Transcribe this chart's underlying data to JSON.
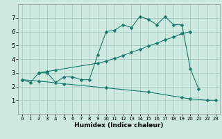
{
  "xlabel": "Humidex (Indice chaleur)",
  "bg_color": "#cce8e0",
  "grid_color": "#aacfc8",
  "line_color": "#1a7a6e",
  "xlim": [
    -0.5,
    23.5
  ],
  "ylim": [
    0,
    8
  ],
  "xticks": [
    0,
    1,
    2,
    3,
    4,
    5,
    6,
    7,
    8,
    9,
    10,
    11,
    12,
    13,
    14,
    15,
    16,
    17,
    18,
    19,
    20,
    21,
    22,
    23
  ],
  "yticks": [
    1,
    2,
    3,
    4,
    5,
    6,
    7
  ],
  "line1_x": [
    0,
    1,
    2,
    3,
    4,
    5,
    6,
    7,
    8,
    9,
    10,
    11,
    12,
    13,
    14,
    15,
    16,
    17,
    18,
    19,
    20,
    21
  ],
  "line1_y": [
    2.5,
    2.3,
    3.0,
    3.0,
    2.3,
    2.7,
    2.7,
    2.5,
    2.5,
    4.3,
    6.0,
    6.1,
    6.5,
    6.3,
    7.1,
    6.9,
    6.5,
    7.1,
    6.5,
    6.5,
    3.3,
    1.8
  ],
  "line2_x": [
    2,
    3,
    4,
    9,
    10,
    11,
    12,
    13,
    14,
    15,
    16,
    17,
    18,
    19,
    20
  ],
  "line2_y": [
    3.0,
    3.1,
    3.2,
    3.7,
    3.85,
    4.05,
    4.25,
    4.5,
    4.7,
    4.95,
    5.15,
    5.4,
    5.6,
    5.85,
    6.0
  ],
  "line3_x": [
    0,
    2,
    5,
    10,
    15,
    19,
    20,
    22,
    23
  ],
  "line3_y": [
    2.5,
    2.4,
    2.2,
    1.9,
    1.6,
    1.2,
    1.1,
    1.0,
    1.0
  ]
}
